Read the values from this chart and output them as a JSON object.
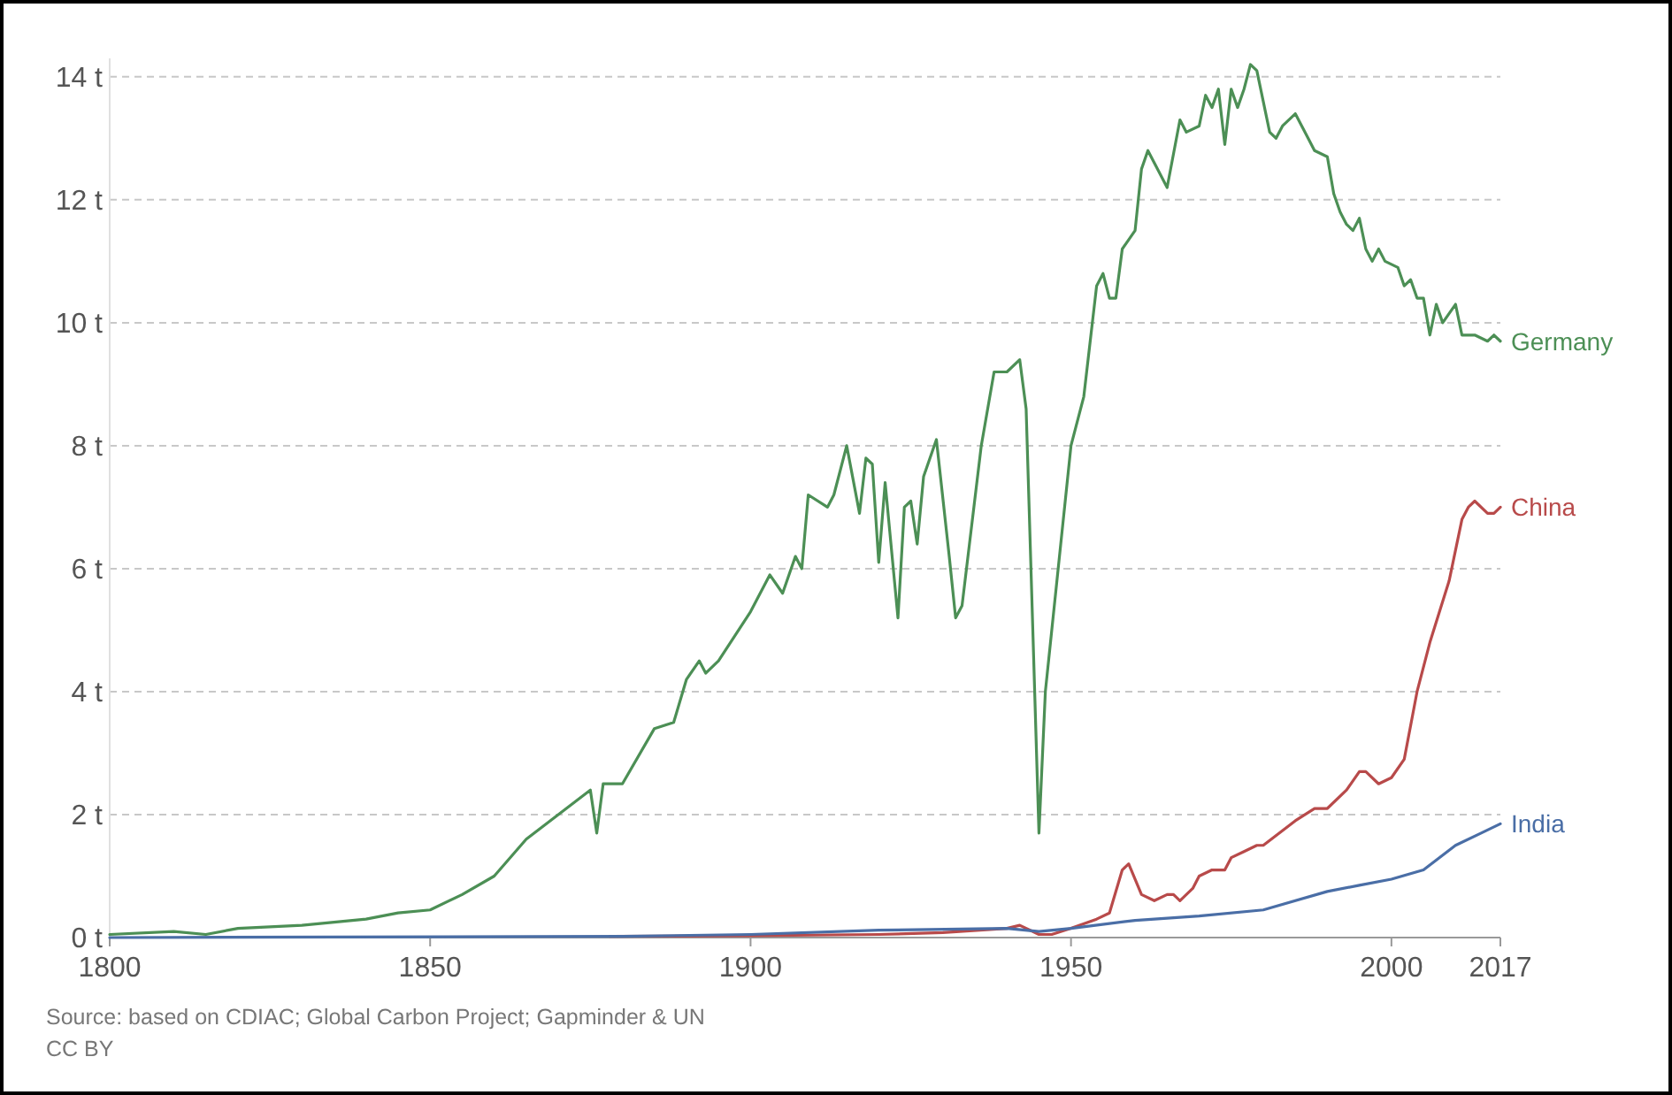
{
  "chart_data": {
    "type": "line",
    "xlim": [
      1800,
      2017
    ],
    "xticks": [
      1800,
      1850,
      1900,
      1950,
      2000,
      2017
    ],
    "ylim": [
      0,
      14.3
    ],
    "yticks": [
      {
        "value": 0,
        "label": "0 t"
      },
      {
        "value": 2,
        "label": "2 t"
      },
      {
        "value": 4,
        "label": "4 t"
      },
      {
        "value": 6,
        "label": "6 t"
      },
      {
        "value": 8,
        "label": "8 t"
      },
      {
        "value": 10,
        "label": "10 t"
      },
      {
        "value": 12,
        "label": "12 t"
      },
      {
        "value": 14,
        "label": "14 t"
      }
    ],
    "grid": "y",
    "legend": "right",
    "marker": "none",
    "annotations": [
      "Source: based on CDIAC; Global Carbon Project; Gapminder & UN",
      "CC BY"
    ],
    "series": [
      {
        "name": "Germany",
        "color": "#4c8f55",
        "x": [
          1800,
          1810,
          1815,
          1820,
          1830,
          1840,
          1845,
          1850,
          1855,
          1860,
          1865,
          1870,
          1875,
          1876,
          1877,
          1880,
          1885,
          1888,
          1890,
          1892,
          1893,
          1895,
          1900,
          1903,
          1905,
          1907,
          1908,
          1909,
          1912,
          1913,
          1915,
          1917,
          1918,
          1919,
          1920,
          1921,
          1923,
          1924,
          1925,
          1926,
          1927,
          1929,
          1931,
          1932,
          1933,
          1936,
          1938,
          1940,
          1942,
          1943,
          1945,
          1946,
          1948,
          1950,
          1952,
          1954,
          1955,
          1956,
          1957,
          1958,
          1960,
          1961,
          1962,
          1965,
          1967,
          1968,
          1970,
          1971,
          1972,
          1973,
          1974,
          1975,
          1976,
          1977,
          1978,
          1979,
          1981,
          1982,
          1983,
          1985,
          1987,
          1988,
          1990,
          1991,
          1992,
          1993,
          1994,
          1995,
          1996,
          1997,
          1998,
          1999,
          2001,
          2002,
          2003,
          2004,
          2005,
          2006,
          2007,
          2008,
          2010,
          2011,
          2013,
          2015,
          2016,
          2017
        ],
        "values": [
          0.05,
          0.1,
          0.05,
          0.15,
          0.2,
          0.3,
          0.4,
          0.45,
          0.7,
          1.0,
          1.6,
          2.0,
          2.4,
          1.7,
          2.5,
          2.5,
          3.4,
          3.5,
          4.2,
          4.5,
          4.3,
          4.5,
          5.3,
          5.9,
          5.6,
          6.2,
          6.0,
          7.2,
          7.0,
          7.2,
          8.0,
          6.9,
          7.8,
          7.7,
          6.1,
          7.4,
          5.2,
          7.0,
          7.1,
          6.4,
          7.5,
          8.1,
          6.2,
          5.2,
          5.4,
          8.0,
          9.2,
          9.2,
          9.4,
          8.6,
          1.7,
          4.0,
          6.0,
          8.0,
          8.8,
          10.6,
          10.8,
          10.4,
          10.4,
          11.2,
          11.5,
          12.5,
          12.8,
          12.2,
          13.3,
          13.1,
          13.2,
          13.7,
          13.5,
          13.8,
          12.9,
          13.8,
          13.5,
          13.8,
          14.2,
          14.1,
          13.1,
          13.0,
          13.2,
          13.4,
          13.0,
          12.8,
          12.7,
          12.1,
          11.8,
          11.6,
          11.5,
          11.7,
          11.2,
          11.0,
          11.2,
          11.0,
          10.9,
          10.6,
          10.7,
          10.4,
          10.4,
          9.8,
          10.3,
          10.0,
          10.3,
          9.8,
          9.8,
          9.7,
          9.8,
          9.7
        ]
      },
      {
        "name": "China",
        "color": "#b84a4a",
        "x": [
          1878,
          1900,
          1920,
          1930,
          1940,
          1942,
          1945,
          1947,
          1950,
          1954,
          1956,
          1958,
          1959,
          1961,
          1963,
          1965,
          1966,
          1967,
          1969,
          1970,
          1972,
          1974,
          1975,
          1977,
          1979,
          1980,
          1985,
          1988,
          1990,
          1993,
          1995,
          1996,
          1998,
          2000,
          2002,
          2004,
          2006,
          2009,
          2011,
          2012,
          2013,
          2015,
          2016,
          2017
        ],
        "values": [
          0.02,
          0.03,
          0.05,
          0.08,
          0.15,
          0.2,
          0.05,
          0.05,
          0.15,
          0.3,
          0.4,
          1.1,
          1.2,
          0.7,
          0.6,
          0.7,
          0.7,
          0.6,
          0.8,
          1.0,
          1.1,
          1.1,
          1.3,
          1.4,
          1.5,
          1.5,
          1.9,
          2.1,
          2.1,
          2.4,
          2.7,
          2.7,
          2.5,
          2.6,
          2.9,
          4.0,
          4.8,
          5.8,
          6.8,
          7.0,
          7.1,
          6.9,
          6.9,
          7.0
        ]
      },
      {
        "name": "India",
        "color": "#4a6ea6",
        "x": [
          1800,
          1880,
          1900,
          1920,
          1940,
          1945,
          1950,
          1960,
          1970,
          1980,
          1990,
          1995,
          2000,
          2005,
          2010,
          2014,
          2017
        ],
        "values": [
          0,
          0.02,
          0.05,
          0.12,
          0.15,
          0.1,
          0.15,
          0.28,
          0.35,
          0.45,
          0.75,
          0.85,
          0.95,
          1.1,
          1.5,
          1.7,
          1.85
        ]
      }
    ]
  }
}
